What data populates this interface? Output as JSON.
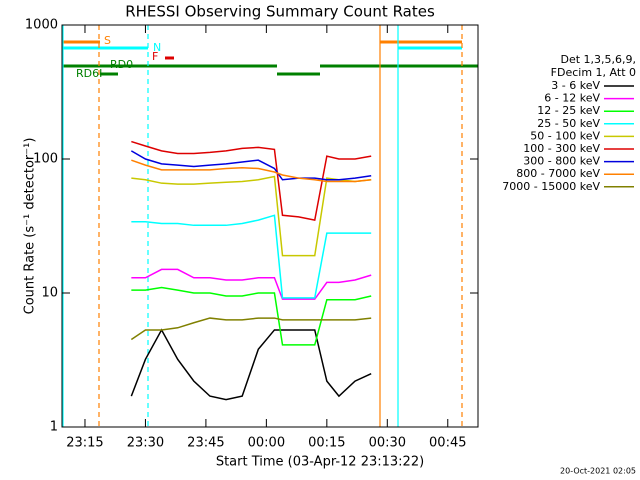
{
  "chart_data": {
    "type": "line",
    "title": "RHESSI Observing Summary Count Rates",
    "xlabel": "Start Time (03-Apr-12 23:13:22)",
    "ylabel": "Count Rate (s⁻¹ detector⁻¹)",
    "legend_header": [
      "Det 1,3,5,6,9,",
      "FDecim 1, Att 0"
    ],
    "footer": "20-Oct-2021 02:05",
    "annotations": [
      "S",
      "N",
      "F",
      "RD0",
      "RD6I"
    ],
    "log_y": true,
    "legend": "right",
    "xlim": [
      9.3,
      112.5
    ],
    "xticks": [
      {
        "value": 15,
        "label": "23:15"
      },
      {
        "value": 30,
        "label": "23:30"
      },
      {
        "value": 45,
        "label": "23:45"
      },
      {
        "value": 60,
        "label": "00:00"
      },
      {
        "value": 75,
        "label": "00:15"
      },
      {
        "value": 90,
        "label": "00:30"
      },
      {
        "value": 105,
        "label": "00:45"
      }
    ],
    "ylim": [
      1,
      1000
    ],
    "yticks": [
      1,
      10,
      100,
      1000
    ],
    "x": [
      26.5,
      30,
      34,
      38,
      42,
      46,
      50,
      54,
      58,
      62,
      64,
      68,
      72,
      75,
      78,
      82,
      86
    ],
    "series": [
      {
        "name": "3 - 6 keV",
        "color": "#000000",
        "values": [
          1.7,
          3.2,
          5.3,
          3.2,
          2.2,
          1.7,
          1.6,
          1.7,
          3.8,
          5.3,
          5.3,
          5.3,
          5.3,
          2.2,
          1.7,
          2.2,
          2.5
        ]
      },
      {
        "name": "6 - 12 keV",
        "color": "#ff00ff",
        "values": [
          13,
          13,
          15,
          15,
          13,
          13,
          12.5,
          12.5,
          13,
          13,
          9,
          9,
          9,
          12,
          12,
          12.5,
          13.6
        ]
      },
      {
        "name": "12 - 25 keV",
        "color": "#00ff00",
        "values": [
          10.5,
          10.5,
          11,
          10.5,
          10,
          10,
          9.5,
          9.5,
          10,
          10,
          4.1,
          4.1,
          4.1,
          8.9,
          8.9,
          8.9,
          9.5
        ]
      },
      {
        "name": "25 - 50 keV",
        "color": "#00ffff",
        "values": [
          34,
          34,
          33,
          33,
          32,
          32,
          32,
          33,
          35,
          38,
          9.2,
          9.2,
          9.2,
          28,
          28,
          28,
          28
        ]
      },
      {
        "name": "50 - 100 keV",
        "color": "#c8c800",
        "values": [
          72,
          70,
          66,
          65,
          65,
          66,
          67,
          68,
          70,
          74,
          19,
          19,
          19,
          72,
          70,
          68,
          70
        ]
      },
      {
        "name": "100 - 300 keV",
        "color": "#dd0000",
        "values": [
          135,
          125,
          115,
          110,
          110,
          112,
          115,
          120,
          122,
          118,
          38,
          37,
          35,
          105,
          100,
          100,
          105
        ]
      },
      {
        "name": "300 - 800 keV",
        "color": "#0000dd",
        "values": [
          115,
          100,
          92,
          90,
          88,
          90,
          92,
          95,
          98,
          85,
          70,
          72,
          72,
          70,
          70,
          72,
          75
        ]
      },
      {
        "name": "800 - 7000 keV",
        "color": "#ff8000",
        "values": [
          98,
          90,
          83,
          83,
          83,
          83,
          85,
          86,
          85,
          80,
          76,
          72,
          70,
          68,
          68,
          68,
          70
        ]
      },
      {
        "name": "7000 - 15000 keV",
        "color": "#808000",
        "values": [
          4.5,
          5.3,
          5.3,
          5.5,
          6,
          6.5,
          6.3,
          6.3,
          6.5,
          6.5,
          6.3,
          6.3,
          6.3,
          6.3,
          6.3,
          6.3,
          6.5
        ]
      }
    ]
  }
}
